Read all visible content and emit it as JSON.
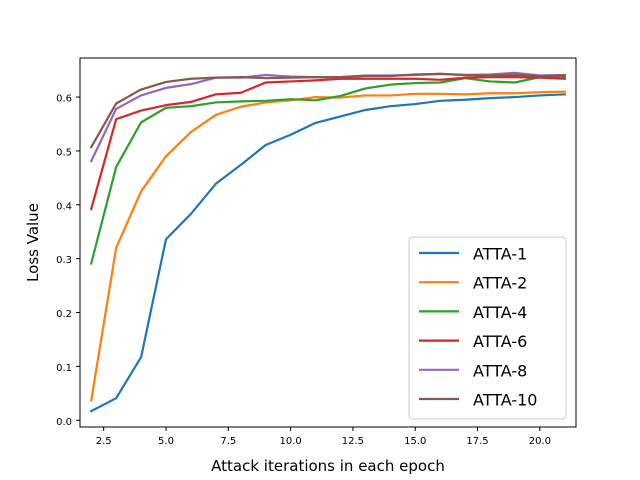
{
  "chart_data": {
    "type": "line",
    "xlabel": "Attack iterations in each epoch",
    "ylabel": "Loss Value",
    "xlim": [
      1.55,
      21.45
    ],
    "ylim": [
      -0.0125,
      0.6725
    ],
    "xticks": [
      2.5,
      5.0,
      7.5,
      10.0,
      12.5,
      15.0,
      17.5,
      20.0
    ],
    "xtick_labels": [
      "2.5",
      "5.0",
      "7.5",
      "10.0",
      "12.5",
      "15.0",
      "17.5",
      "20.0"
    ],
    "yticks": [
      0.0,
      0.1,
      0.2,
      0.3,
      0.4,
      0.5,
      0.6
    ],
    "ytick_labels": [
      "0.0",
      "0.1",
      "0.2",
      "0.3",
      "0.4",
      "0.5",
      "0.6"
    ],
    "grid": false,
    "legend_position": "lower-right",
    "x": [
      2,
      3,
      4,
      5,
      6,
      7,
      8,
      9,
      10,
      11,
      12,
      13,
      14,
      15,
      16,
      17,
      18,
      19,
      20,
      21
    ],
    "series": [
      {
        "name": "ATTA-1",
        "color": "#1f77b4",
        "values": [
          0.017,
          0.041,
          0.117,
          0.336,
          0.383,
          0.439,
          0.474,
          0.511,
          0.53,
          0.552,
          0.564,
          0.576,
          0.583,
          0.587,
          0.593,
          0.595,
          0.598,
          0.6,
          0.603,
          0.605
        ]
      },
      {
        "name": "ATTA-2",
        "color": "#ff7f0e",
        "values": [
          0.037,
          0.32,
          0.425,
          0.49,
          0.535,
          0.567,
          0.582,
          0.59,
          0.594,
          0.6,
          0.599,
          0.603,
          0.603,
          0.606,
          0.606,
          0.605,
          0.607,
          0.607,
          0.609,
          0.61
        ]
      },
      {
        "name": "ATTA-4",
        "color": "#2ca02c",
        "values": [
          0.291,
          0.47,
          0.553,
          0.58,
          0.583,
          0.59,
          0.592,
          0.593,
          0.596,
          0.594,
          0.602,
          0.616,
          0.623,
          0.626,
          0.627,
          0.635,
          0.629,
          0.627,
          0.637,
          0.637
        ]
      },
      {
        "name": "ATTA-6",
        "color": "#d62728",
        "values": [
          0.392,
          0.559,
          0.575,
          0.585,
          0.591,
          0.605,
          0.608,
          0.627,
          0.629,
          0.631,
          0.634,
          0.634,
          0.634,
          0.634,
          0.632,
          0.636,
          0.637,
          0.637,
          0.636,
          0.634
        ]
      },
      {
        "name": "ATTA-8",
        "color": "#9467bd",
        "values": [
          0.481,
          0.578,
          0.603,
          0.617,
          0.624,
          0.636,
          0.636,
          0.641,
          0.638,
          0.637,
          0.637,
          0.64,
          0.64,
          0.641,
          0.643,
          0.641,
          0.642,
          0.645,
          0.64,
          0.641
        ]
      },
      {
        "name": "ATTA-10",
        "color": "#8c564b",
        "values": [
          0.507,
          0.588,
          0.614,
          0.628,
          0.634,
          0.636,
          0.637,
          0.635,
          0.636,
          0.637,
          0.637,
          0.639,
          0.639,
          0.642,
          0.643,
          0.641,
          0.64,
          0.641,
          0.639,
          0.64
        ]
      }
    ]
  }
}
